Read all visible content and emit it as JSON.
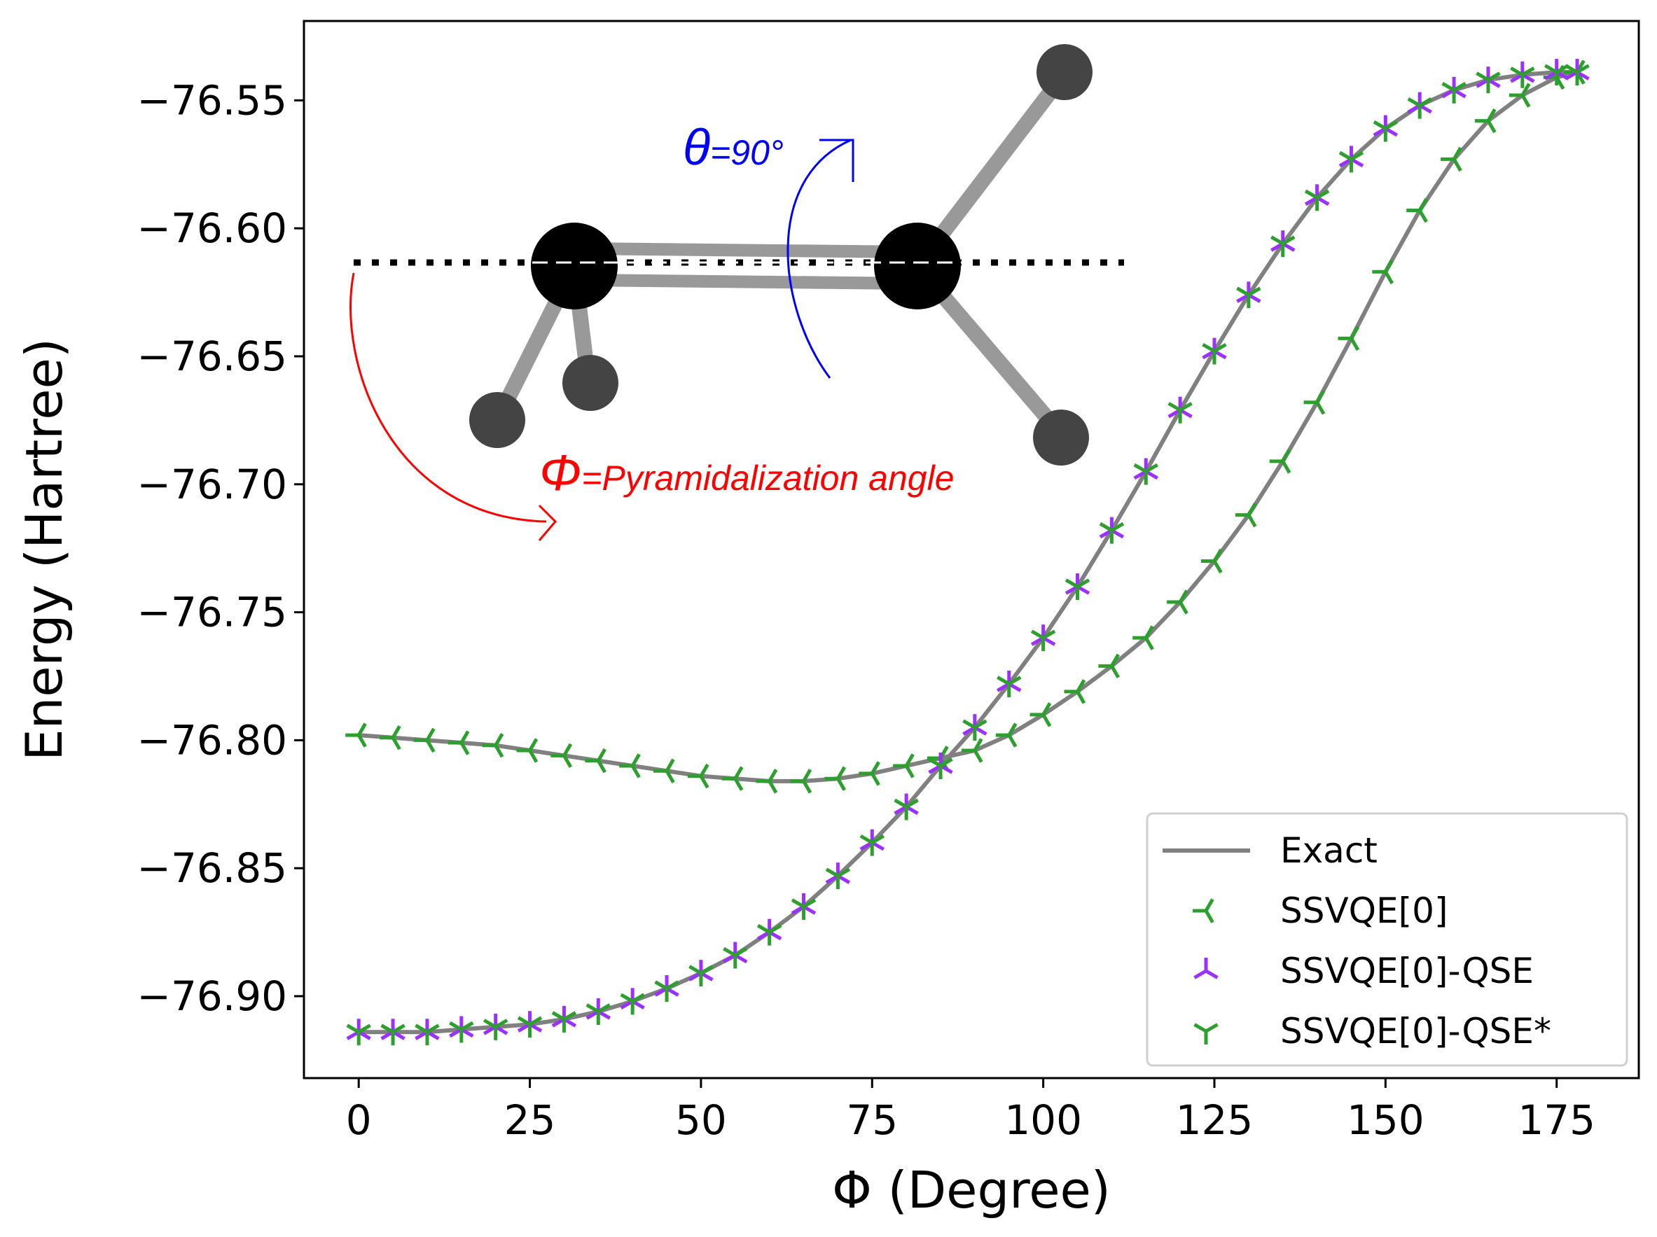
{
  "chart_data": {
    "type": "line",
    "xlabel": "Φ (Degree)",
    "ylabel": "Energy (Hartree)",
    "xlim": [
      -8,
      187
    ],
    "ylim": [
      -76.932,
      -76.519
    ],
    "xticks": [
      0,
      25,
      50,
      75,
      100,
      125,
      150,
      175
    ],
    "xtick_labels": [
      "0",
      "25",
      "50",
      "75",
      "100",
      "125",
      "150",
      "175"
    ],
    "yticks": [
      -76.55,
      -76.6,
      -76.65,
      -76.7,
      -76.75,
      -76.8,
      -76.85,
      -76.9
    ],
    "ytick_labels": [
      "−76.55",
      "−76.60",
      "−76.65",
      "−76.70",
      "−76.75",
      "−76.80",
      "−76.85",
      "−76.90"
    ],
    "legend_position": "lower-right",
    "x": [
      0,
      5,
      10,
      15,
      20,
      25,
      30,
      35,
      40,
      45,
      50,
      55,
      60,
      65,
      70,
      75,
      80,
      85,
      90,
      95,
      100,
      105,
      110,
      115,
      120,
      125,
      130,
      135,
      140,
      145,
      150,
      155,
      160,
      165,
      170,
      175,
      178
    ],
    "series": [
      {
        "name": "Exact",
        "marker": "line",
        "color": "#808080",
        "branches": [
          [
            -76.914,
            -76.914,
            -76.914,
            -76.913,
            -76.912,
            -76.911,
            -76.909,
            -76.906,
            -76.902,
            -76.897,
            -76.891,
            -76.884,
            -76.875,
            -76.865,
            -76.853,
            -76.84,
            -76.826,
            -76.81,
            -76.795,
            -76.778,
            -76.76,
            -76.74,
            -76.718,
            -76.695,
            -76.671,
            -76.648,
            -76.626,
            -76.606,
            -76.588,
            -76.573,
            -76.561,
            -76.552,
            -76.546,
            -76.542,
            -76.54,
            -76.539,
            -76.539
          ],
          [
            -76.798,
            -76.799,
            -76.8,
            -76.801,
            -76.802,
            -76.804,
            -76.806,
            -76.808,
            -76.81,
            -76.812,
            -76.814,
            -76.815,
            -76.816,
            -76.816,
            -76.815,
            -76.813,
            -76.81,
            -76.807,
            -76.804,
            -76.798,
            -76.79,
            -76.781,
            -76.771,
            -76.76,
            -76.746,
            -76.73,
            -76.712,
            -76.691,
            -76.668,
            -76.643,
            -76.617,
            -76.593,
            -76.573,
            -76.558,
            -76.548,
            -76.541,
            -76.539
          ]
        ]
      },
      {
        "name": "SSVQE[0]",
        "marker": "tri_left",
        "color": "#2ca02c",
        "values": [
          -76.798,
          -76.799,
          -76.8,
          -76.801,
          -76.802,
          -76.804,
          -76.806,
          -76.808,
          -76.81,
          -76.812,
          -76.814,
          -76.815,
          -76.816,
          -76.816,
          -76.815,
          -76.813,
          -76.81,
          -76.807,
          -76.804,
          -76.798,
          -76.79,
          -76.781,
          -76.771,
          -76.76,
          -76.746,
          -76.73,
          -76.712,
          -76.691,
          -76.668,
          -76.643,
          -76.617,
          -76.593,
          -76.573,
          -76.558,
          -76.548,
          -76.541,
          -76.539
        ]
      },
      {
        "name": "SSVQE[0]-QSE",
        "marker": "tri_up",
        "color": "#9b30ff",
        "values": [
          -76.914,
          -76.914,
          -76.914,
          -76.913,
          -76.912,
          -76.911,
          -76.909,
          -76.906,
          -76.902,
          -76.897,
          -76.891,
          -76.884,
          -76.875,
          -76.865,
          -76.853,
          -76.84,
          -76.826,
          -76.81,
          -76.795,
          -76.778,
          -76.76,
          -76.74,
          -76.718,
          -76.695,
          -76.671,
          -76.648,
          -76.626,
          -76.606,
          -76.588,
          -76.573,
          -76.561,
          -76.552,
          -76.546,
          -76.542,
          -76.54,
          -76.539,
          -76.539
        ]
      },
      {
        "name": "SSVQE[0]-QSE*",
        "marker": "tri_down",
        "color": "#2ca02c",
        "values": [
          -76.914,
          -76.914,
          -76.914,
          -76.913,
          -76.912,
          -76.911,
          -76.909,
          -76.906,
          -76.902,
          -76.897,
          -76.891,
          -76.884,
          -76.875,
          -76.865,
          -76.853,
          -76.84,
          -76.826,
          -76.81,
          -76.795,
          -76.778,
          -76.76,
          -76.74,
          -76.718,
          -76.695,
          -76.671,
          -76.648,
          -76.626,
          -76.606,
          -76.588,
          -76.573,
          -76.561,
          -76.552,
          -76.546,
          -76.542,
          -76.54,
          -76.539,
          -76.539
        ]
      }
    ],
    "annotations": {
      "theta_symbol": "θ",
      "theta_value": "=90°",
      "phi_symbol": "Φ",
      "phi_text": "=Pyramidalization angle",
      "theta_color": "#0000ff",
      "phi_color": "#ff0000"
    }
  }
}
